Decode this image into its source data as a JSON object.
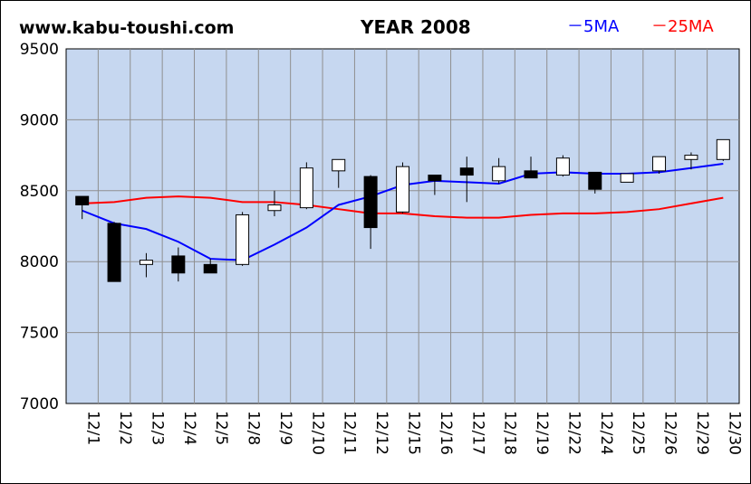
{
  "header": {
    "site": "www.kabu-toushi.com",
    "title": "YEAR 2008",
    "legend_5ma": "－5MA",
    "legend_25ma": "－25MA"
  },
  "colors": {
    "plot_bg": "#c6d7f0",
    "grid": "#8f8f8f",
    "ma5": "#0000ff",
    "ma25": "#ff0000",
    "up_candle": "#ffffff",
    "down_candle": "#000000"
  },
  "chart_data": {
    "type": "candlestick",
    "title": "YEAR 2008",
    "ylim": [
      7000,
      9500
    ],
    "yticks": [
      9500,
      9000,
      8500,
      8000,
      7500,
      7000
    ],
    "grid": true,
    "legend_placement": "top-right",
    "categories": [
      "12/1",
      "12/2",
      "12/3",
      "12/4",
      "12/5",
      "12/8",
      "12/9",
      "12/10",
      "12/11",
      "12/12",
      "12/15",
      "12/16",
      "12/17",
      "12/18",
      "12/19",
      "12/22",
      "12/24",
      "12/25",
      "12/26",
      "12/29",
      "12/30"
    ],
    "candles": [
      {
        "open": 8460,
        "high": 8460,
        "low": 8300,
        "close": 8400
      },
      {
        "open": 8270,
        "high": 8280,
        "low": 7860,
        "close": 7860
      },
      {
        "open": 7980,
        "high": 8060,
        "low": 7890,
        "close": 8010
      },
      {
        "open": 8040,
        "high": 8100,
        "low": 7860,
        "close": 7920
      },
      {
        "open": 7980,
        "high": 8020,
        "low": 7920,
        "close": 7920
      },
      {
        "open": 7980,
        "high": 8350,
        "low": 7970,
        "close": 8330
      },
      {
        "open": 8360,
        "high": 8500,
        "low": 8320,
        "close": 8400
      },
      {
        "open": 8380,
        "high": 8700,
        "low": 8370,
        "close": 8660
      },
      {
        "open": 8640,
        "high": 8720,
        "low": 8520,
        "close": 8720
      },
      {
        "open": 8600,
        "high": 8610,
        "low": 8090,
        "close": 8240
      },
      {
        "open": 8350,
        "high": 8700,
        "low": 8340,
        "close": 8670
      },
      {
        "open": 8610,
        "high": 8610,
        "low": 8470,
        "close": 8570
      },
      {
        "open": 8660,
        "high": 8740,
        "low": 8420,
        "close": 8610
      },
      {
        "open": 8570,
        "high": 8730,
        "low": 8550,
        "close": 8670
      },
      {
        "open": 8640,
        "high": 8740,
        "low": 8590,
        "close": 8590
      },
      {
        "open": 8610,
        "high": 8750,
        "low": 8600,
        "close": 8730
      },
      {
        "open": 8630,
        "high": 8630,
        "low": 8480,
        "close": 8510
      },
      {
        "open": 8560,
        "high": 8620,
        "low": 8560,
        "close": 8620
      },
      {
        "open": 8640,
        "high": 8740,
        "low": 8620,
        "close": 8740
      },
      {
        "open": 8720,
        "high": 8770,
        "low": 8650,
        "close": 8750
      },
      {
        "open": 8720,
        "high": 8860,
        "low": 8710,
        "close": 8860
      }
    ],
    "series": [
      {
        "name": "5MA",
        "values": [
          8360,
          8270,
          8230,
          8140,
          8020,
          8010,
          8120,
          8240,
          8400,
          8460,
          8540,
          8570,
          8560,
          8550,
          8620,
          8630,
          8620,
          8620,
          8630,
          8660,
          8690
        ]
      },
      {
        "name": "25MA",
        "values": [
          8410,
          8420,
          8450,
          8460,
          8450,
          8420,
          8420,
          8400,
          8370,
          8340,
          8340,
          8320,
          8310,
          8310,
          8330,
          8340,
          8340,
          8350,
          8370,
          8410,
          8450
        ]
      }
    ]
  }
}
